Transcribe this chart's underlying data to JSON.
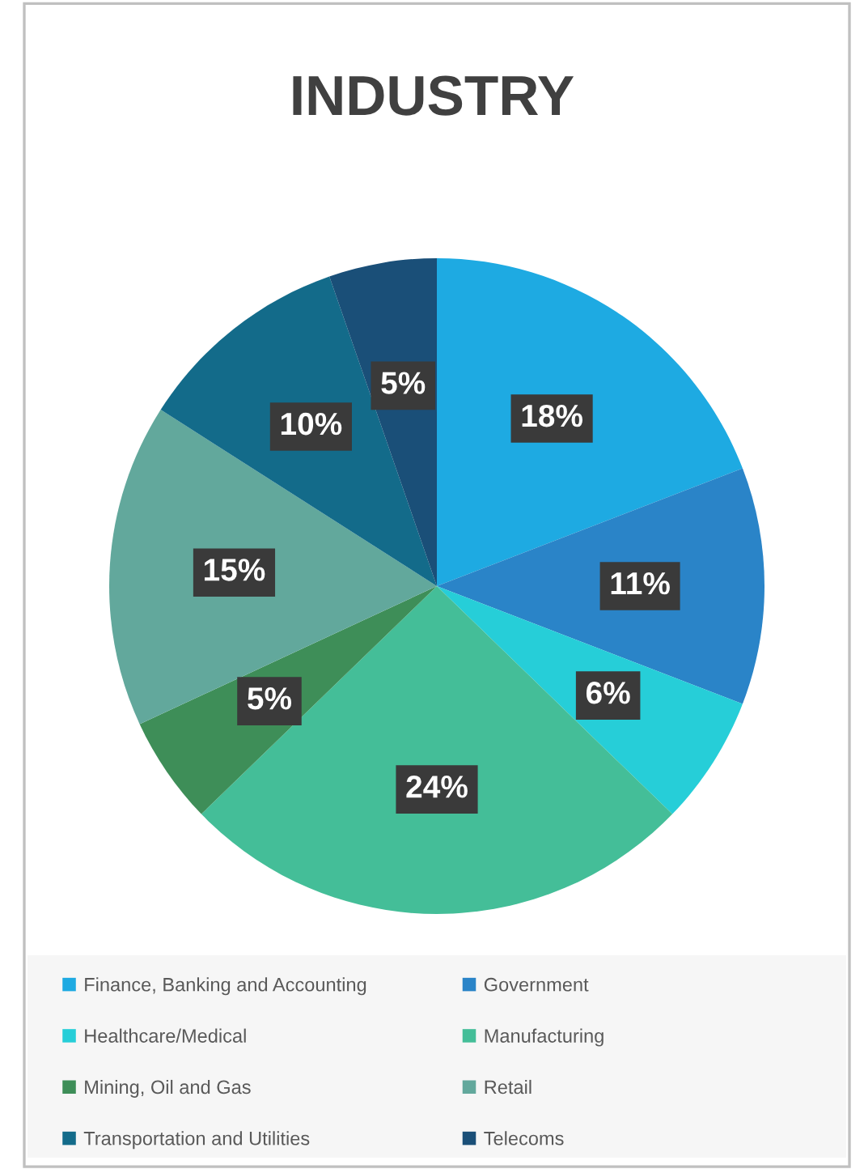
{
  "chart_data": {
    "type": "pie",
    "title": "INDUSTRY",
    "categories": [
      "Finance, Banking and Accounting",
      "Government",
      "Healthcare/Medical",
      "Manufacturing",
      "Mining, Oil and Gas",
      "Retail",
      "Transportation and Utilities",
      "Telecoms"
    ],
    "values": [
      18,
      11,
      6,
      24,
      5,
      15,
      10,
      5
    ],
    "value_labels": [
      "18%",
      "11%",
      "6%",
      "24%",
      "5%",
      "15%",
      "10%",
      "5%"
    ],
    "colors": [
      "#1eaae2",
      "#2a84c8",
      "#26ced8",
      "#44be98",
      "#3e8e58",
      "#62a89c",
      "#136b8a",
      "#1a4f78"
    ],
    "legend": "bottom"
  }
}
